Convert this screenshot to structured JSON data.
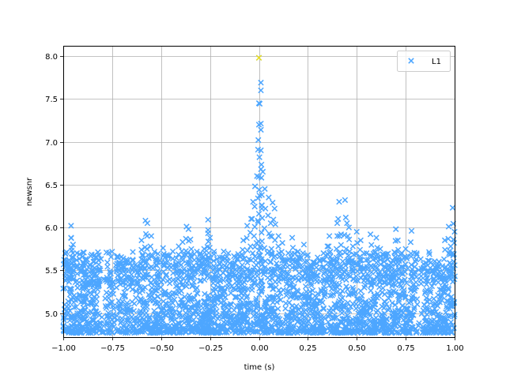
{
  "chart_data": {
    "type": "scatter",
    "xlabel": "time (s)",
    "ylabel": "newsnr",
    "xlim": [
      -1.0,
      1.0
    ],
    "ylim": [
      4.72,
      8.12
    ],
    "xticks": [
      -1.0,
      -0.75,
      -0.5,
      -0.25,
      0.0,
      0.25,
      0.5,
      0.75,
      1.0
    ],
    "xtick_labels": [
      "−1.00",
      "−0.75",
      "−0.50",
      "−0.25",
      "0.00",
      "0.25",
      "0.50",
      "0.75",
      "1.00"
    ],
    "yticks": [
      5.0,
      5.5,
      6.0,
      6.5,
      7.0,
      7.5,
      8.0
    ],
    "ytick_labels": [
      "5.0",
      "5.5",
      "6.0",
      "6.5",
      "7.0",
      "7.5",
      "8.0"
    ],
    "grid": true,
    "legend_position": "top-right",
    "marker": "x",
    "series": [
      {
        "name": "L1",
        "color": "#4da6ff",
        "points": [
          [
            -0.99,
            5.7
          ],
          [
            -0.97,
            5.62
          ],
          [
            -0.96,
            6.02
          ],
          [
            -0.96,
            5.88
          ],
          [
            -0.95,
            5.8
          ],
          [
            -0.93,
            5.7
          ],
          [
            -0.9,
            5.32
          ],
          [
            -0.88,
            5.45
          ],
          [
            -0.85,
            5.55
          ],
          [
            -0.84,
            5.68
          ],
          [
            -0.82,
            5.35
          ],
          [
            -0.76,
            5.42
          ],
          [
            -0.72,
            5.65
          ],
          [
            -0.7,
            5.58
          ],
          [
            -0.68,
            5.5
          ],
          [
            -0.65,
            5.55
          ],
          [
            -0.62,
            5.48
          ],
          [
            -0.6,
            5.85
          ],
          [
            -0.58,
            6.08
          ],
          [
            -0.57,
            6.05
          ],
          [
            -0.55,
            5.9
          ],
          [
            -0.52,
            5.62
          ],
          [
            -0.49,
            5.76
          ],
          [
            -0.47,
            5.68
          ],
          [
            -0.44,
            5.72
          ],
          [
            -0.41,
            5.78
          ],
          [
            -0.39,
            5.83
          ],
          [
            -0.37,
            6.01
          ],
          [
            -0.36,
            5.98
          ],
          [
            -0.35,
            5.86
          ],
          [
            -0.33,
            5.62
          ],
          [
            -0.3,
            5.7
          ],
          [
            -0.28,
            5.75
          ],
          [
            -0.26,
            6.09
          ],
          [
            -0.26,
            5.97
          ],
          [
            -0.25,
            5.88
          ],
          [
            -0.23,
            5.55
          ],
          [
            -0.2,
            5.65
          ],
          [
            -0.18,
            5.72
          ],
          [
            -0.15,
            5.58
          ],
          [
            -0.12,
            5.65
          ],
          [
            -0.1,
            5.52
          ],
          [
            -0.08,
            5.85
          ],
          [
            -0.06,
            6.02
          ],
          [
            -0.04,
            6.1
          ],
          [
            -0.03,
            6.3
          ],
          [
            -0.02,
            6.48
          ],
          [
            -0.01,
            6.6
          ],
          [
            0.0,
            7.2
          ],
          [
            0.0,
            7.45
          ],
          [
            0.01,
            7.6
          ],
          [
            0.01,
            7.69
          ],
          [
            0.0,
            7.98
          ],
          [
            0.01,
            6.9
          ],
          [
            0.02,
            6.65
          ],
          [
            0.03,
            6.45
          ],
          [
            0.05,
            6.35
          ],
          [
            0.06,
            6.05
          ],
          [
            0.07,
            6.29
          ],
          [
            0.08,
            6.22
          ],
          [
            0.1,
            5.9
          ],
          [
            0.12,
            5.82
          ],
          [
            0.15,
            5.7
          ],
          [
            0.17,
            5.88
          ],
          [
            0.2,
            5.72
          ],
          [
            0.23,
            5.8
          ],
          [
            0.25,
            5.68
          ],
          [
            0.27,
            5.55
          ],
          [
            0.3,
            5.65
          ],
          [
            0.33,
            5.7
          ],
          [
            0.35,
            5.78
          ],
          [
            0.36,
            5.9
          ],
          [
            0.38,
            5.62
          ],
          [
            0.4,
            6.05
          ],
          [
            0.41,
            6.3
          ],
          [
            0.42,
            5.92
          ],
          [
            0.44,
            6.32
          ],
          [
            0.45,
            6.05
          ],
          [
            0.46,
            6.0
          ],
          [
            0.48,
            5.78
          ],
          [
            0.5,
            5.95
          ],
          [
            0.52,
            5.85
          ],
          [
            0.55,
            5.7
          ],
          [
            0.57,
            5.92
          ],
          [
            0.6,
            5.88
          ],
          [
            0.62,
            5.75
          ],
          [
            0.64,
            5.6
          ],
          [
            0.66,
            5.55
          ],
          [
            0.68,
            5.5
          ],
          [
            0.7,
            5.98
          ],
          [
            0.71,
            5.85
          ],
          [
            0.73,
            5.7
          ],
          [
            0.75,
            5.75
          ],
          [
            0.78,
            5.96
          ],
          [
            0.8,
            5.6
          ],
          [
            0.83,
            5.52
          ],
          [
            0.86,
            5.48
          ],
          [
            0.89,
            5.56
          ],
          [
            0.92,
            5.6
          ],
          [
            0.95,
            5.85
          ],
          [
            0.97,
            6.01
          ],
          [
            0.98,
            5.78
          ],
          [
            0.99,
            6.23
          ],
          [
            1.0,
            5.95
          ]
        ]
      }
    ],
    "highlight": {
      "x": 0.0,
      "y": 7.98,
      "color": "#f0e01a"
    }
  }
}
